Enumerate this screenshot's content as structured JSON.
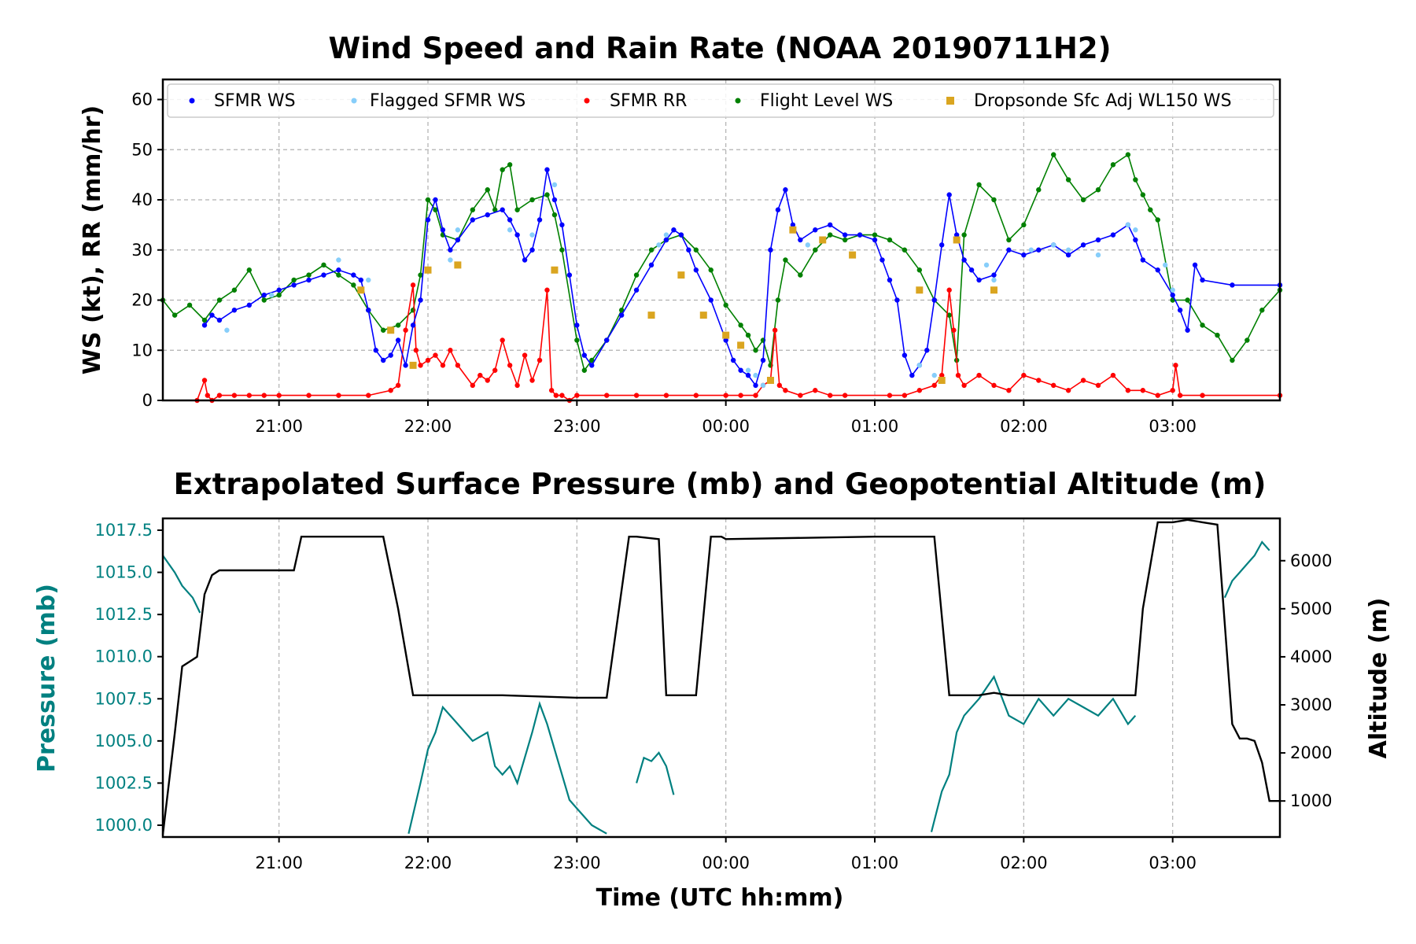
{
  "chart_data": [
    {
      "type": "scatter",
      "title": "Wind Speed and Rain Rate (NOAA 20190711H2)",
      "xlabel": "",
      "ylabel": "WS (kt), RR (mm/hr)",
      "xlim_hours": [
        20.22,
        27.72
      ],
      "ylim": [
        0,
        64
      ],
      "yticks": [
        "0",
        "10",
        "20",
        "30",
        "40",
        "50",
        "60"
      ],
      "xticks": [
        "21:00",
        "22:00",
        "23:00",
        "00:00",
        "01:00",
        "02:00",
        "03:00"
      ],
      "grid": true,
      "legend_position": "top",
      "series": [
        {
          "name": "SFMR WS",
          "color": "#0000ff",
          "marker": "dot",
          "line": true,
          "x_hours": [
            20.5,
            20.55,
            20.6,
            20.7,
            20.8,
            20.9,
            21.0,
            21.1,
            21.2,
            21.3,
            21.4,
            21.5,
            21.55,
            21.6,
            21.65,
            21.7,
            21.75,
            21.8,
            21.85,
            21.9,
            21.95,
            22.0,
            22.05,
            22.1,
            22.15,
            22.2,
            22.3,
            22.4,
            22.5,
            22.55,
            22.6,
            22.65,
            22.7,
            22.75,
            22.8,
            22.85,
            22.9,
            22.95,
            23.0,
            23.05,
            23.1,
            23.2,
            23.3,
            23.4,
            23.5,
            23.6,
            23.65,
            23.7,
            23.75,
            23.8,
            23.9,
            24.0,
            24.05,
            24.1,
            24.15,
            24.2,
            24.25,
            24.3,
            24.35,
            24.4,
            24.45,
            24.5,
            24.6,
            24.7,
            24.8,
            24.9,
            25.0,
            25.05,
            25.1,
            25.15,
            25.2,
            25.25,
            25.3,
            25.35,
            25.4,
            25.45,
            25.5,
            25.55,
            25.6,
            25.65,
            25.7,
            25.8,
            25.9,
            26.0,
            26.1,
            26.2,
            26.3,
            26.4,
            26.5,
            26.6,
            26.7,
            26.75,
            26.8,
            26.9,
            27.0,
            27.05,
            27.1,
            27.15,
            27.2,
            27.4,
            27.72
          ],
          "values": [
            15,
            17,
            16,
            18,
            19,
            21,
            22,
            23,
            24,
            25,
            26,
            25,
            24,
            18,
            10,
            8,
            9,
            12,
            7,
            15,
            20,
            36,
            40,
            34,
            30,
            32,
            36,
            37,
            38,
            36,
            33,
            28,
            30,
            36,
            46,
            40,
            35,
            25,
            15,
            9,
            7,
            12,
            17,
            22,
            27,
            32,
            34,
            33,
            30,
            26,
            20,
            12,
            8,
            6,
            5,
            3,
            8,
            30,
            38,
            42,
            35,
            32,
            34,
            35,
            33,
            33,
            32,
            28,
            24,
            20,
            9,
            5,
            7,
            10,
            20,
            31,
            41,
            33,
            28,
            26,
            24,
            25,
            30,
            29,
            30,
            31,
            29,
            31,
            32,
            33,
            35,
            32,
            28,
            26,
            21,
            18,
            14,
            27,
            24,
            23,
            23
          ]
        },
        {
          "name": "Flagged SFMR WS",
          "color": "#87cefa",
          "marker": "dot",
          "line": false,
          "x_hours": [
            20.65,
            20.95,
            21.4,
            21.6,
            22.15,
            22.2,
            22.55,
            22.7,
            22.85,
            23.55,
            23.6,
            24.15,
            24.2,
            24.25,
            24.55,
            25.3,
            25.4,
            25.75,
            25.8,
            26.05,
            26.2,
            26.3,
            26.5,
            26.7,
            26.75,
            26.95,
            27.0
          ],
          "values": [
            14,
            21,
            28,
            24,
            28,
            34,
            34,
            33,
            43,
            31,
            33,
            6,
            5,
            3,
            31,
            7,
            5,
            27,
            24,
            30,
            31,
            30,
            29,
            35,
            34,
            27,
            22
          ]
        },
        {
          "name": "SFMR RR",
          "color": "#ff0000",
          "marker": "dot",
          "line": true,
          "x_hours": [
            20.45,
            20.5,
            20.52,
            20.55,
            20.6,
            20.7,
            20.8,
            20.9,
            21.0,
            21.2,
            21.4,
            21.6,
            21.75,
            21.8,
            21.85,
            21.9,
            21.92,
            21.95,
            22.0,
            22.05,
            22.1,
            22.15,
            22.2,
            22.3,
            22.35,
            22.4,
            22.45,
            22.5,
            22.55,
            22.6,
            22.65,
            22.7,
            22.75,
            22.8,
            22.83,
            22.86,
            22.9,
            22.95,
            23.0,
            23.2,
            23.4,
            23.6,
            23.8,
            24.0,
            24.1,
            24.2,
            24.25,
            24.3,
            24.33,
            24.36,
            24.4,
            24.5,
            24.6,
            24.7,
            24.8,
            25.1,
            25.2,
            25.3,
            25.4,
            25.45,
            25.5,
            25.53,
            25.56,
            25.6,
            25.7,
            25.8,
            25.9,
            26.0,
            26.1,
            26.2,
            26.3,
            26.4,
            26.5,
            26.6,
            26.7,
            26.8,
            26.9,
            27.0,
            27.02,
            27.05,
            27.2,
            27.72
          ],
          "values": [
            0,
            4,
            1,
            0,
            1,
            1,
            1,
            1,
            1,
            1,
            1,
            1,
            2,
            3,
            14,
            23,
            10,
            7,
            8,
            9,
            7,
            10,
            7,
            3,
            5,
            4,
            6,
            12,
            7,
            3,
            9,
            4,
            8,
            22,
            2,
            1,
            1,
            0,
            1,
            1,
            1,
            1,
            1,
            1,
            1,
            1,
            3,
            4,
            14,
            3,
            2,
            1,
            2,
            1,
            1,
            1,
            1,
            2,
            3,
            5,
            22,
            14,
            5,
            3,
            5,
            3,
            2,
            5,
            4,
            3,
            2,
            4,
            3,
            5,
            2,
            2,
            1,
            2,
            7,
            1,
            1,
            1
          ]
        },
        {
          "name": "Flight Level WS",
          "color": "#008000",
          "marker": "dot",
          "line": true,
          "x_hours": [
            20.22,
            20.3,
            20.4,
            20.5,
            20.6,
            20.7,
            20.8,
            20.9,
            21.0,
            21.1,
            21.2,
            21.3,
            21.4,
            21.5,
            21.6,
            21.7,
            21.8,
            21.9,
            21.95,
            22.0,
            22.05,
            22.1,
            22.2,
            22.3,
            22.4,
            22.45,
            22.5,
            22.55,
            22.6,
            22.7,
            22.8,
            22.85,
            22.9,
            23.0,
            23.05,
            23.1,
            23.2,
            23.3,
            23.4,
            23.5,
            23.6,
            23.7,
            23.8,
            23.9,
            24.0,
            24.1,
            24.15,
            24.2,
            24.25,
            24.3,
            24.35,
            24.4,
            24.5,
            24.6,
            24.7,
            24.8,
            24.9,
            25.0,
            25.1,
            25.2,
            25.3,
            25.4,
            25.5,
            25.55,
            25.6,
            25.7,
            25.8,
            25.9,
            26.0,
            26.1,
            26.2,
            26.3,
            26.4,
            26.5,
            26.6,
            26.7,
            26.75,
            26.8,
            26.85,
            26.9,
            27.0,
            27.1,
            27.2,
            27.3,
            27.4,
            27.5,
            27.6,
            27.72
          ],
          "values": [
            20,
            17,
            19,
            16,
            20,
            22,
            26,
            20,
            21,
            24,
            25,
            27,
            25,
            23,
            18,
            14,
            15,
            18,
            25,
            40,
            38,
            33,
            32,
            38,
            42,
            38,
            46,
            47,
            38,
            40,
            41,
            37,
            30,
            12,
            6,
            8,
            12,
            18,
            25,
            30,
            32,
            33,
            30,
            26,
            19,
            15,
            13,
            10,
            12,
            7,
            20,
            28,
            25,
            30,
            33,
            32,
            33,
            33,
            32,
            30,
            26,
            20,
            17,
            8,
            33,
            43,
            40,
            32,
            35,
            42,
            49,
            44,
            40,
            42,
            47,
            49,
            44,
            41,
            38,
            36,
            20,
            20,
            15,
            13,
            8,
            12,
            18,
            22
          ]
        },
        {
          "name": "Dropsonde Sfc Adj WL150 WS",
          "color": "#daa520",
          "marker": "square",
          "line": false,
          "x_hours": [
            21.55,
            21.75,
            21.9,
            22.0,
            22.2,
            22.85,
            23.5,
            23.7,
            23.85,
            24.0,
            24.1,
            24.3,
            24.45,
            24.65,
            24.85,
            25.3,
            25.45,
            25.55,
            25.8
          ],
          "values": [
            22,
            14,
            7,
            26,
            27,
            26,
            17,
            25,
            17,
            13,
            11,
            4,
            34,
            32,
            29,
            22,
            4,
            32,
            22
          ]
        }
      ]
    },
    {
      "type": "line",
      "title": "Extrapolated Surface Pressure (mb) and Geopotential Altitude (m)",
      "xlabel": "Time (UTC hh:mm)",
      "ylabel_left": "Pressure (mb)",
      "ylabel_right": "Altitude (m)",
      "xlim_hours": [
        20.22,
        27.72
      ],
      "ylim_left": [
        999.3,
        1018.2
      ],
      "ylim_right": [
        250,
        6880
      ],
      "yticks_left": [
        "1000.0",
        "1002.5",
        "1005.0",
        "1007.5",
        "1010.0",
        "1012.5",
        "1015.0",
        "1017.5"
      ],
      "yticks_right": [
        "1000",
        "2000",
        "3000",
        "4000",
        "5000",
        "6000"
      ],
      "xticks": [
        "21:00",
        "22:00",
        "23:00",
        "00:00",
        "01:00",
        "02:00",
        "03:00"
      ],
      "grid": true,
      "pressure_color": "#008080",
      "altitude_color": "#000000",
      "pressure_segments": [
        {
          "x_hours": [
            20.22,
            20.3,
            20.35,
            20.42,
            20.47
          ],
          "values": [
            1016.0,
            1015.0,
            1014.2,
            1013.5,
            1012.6
          ]
        },
        {
          "x_hours": [
            21.87,
            21.95,
            22.0,
            22.05,
            22.1,
            22.2,
            22.3,
            22.4,
            22.45,
            22.5,
            22.55,
            22.6,
            22.7,
            22.75,
            22.8,
            22.9,
            22.95,
            23.0,
            23.1,
            23.2
          ],
          "values": [
            999.5,
            1002.5,
            1004.5,
            1005.5,
            1007.0,
            1006.0,
            1005.0,
            1005.5,
            1003.5,
            1003.0,
            1003.5,
            1002.5,
            1005.5,
            1007.2,
            1006.0,
            1003.0,
            1001.5,
            1001.0,
            1000.0,
            999.5
          ]
        },
        {
          "x_hours": [
            23.4,
            23.45,
            23.5,
            23.55,
            23.6,
            23.65
          ],
          "values": [
            1002.5,
            1004.0,
            1003.8,
            1004.3,
            1003.5,
            1001.8
          ]
        },
        {
          "x_hours": [
            25.38,
            25.45,
            25.5,
            25.55,
            25.6,
            25.7,
            25.8,
            25.9,
            26.0,
            26.1,
            26.2,
            26.3,
            26.4,
            26.5,
            26.6,
            26.7,
            26.75
          ],
          "values": [
            999.6,
            1002.0,
            1003.0,
            1005.5,
            1006.5,
            1007.5,
            1008.8,
            1006.5,
            1006.0,
            1007.5,
            1006.5,
            1007.5,
            1007.0,
            1006.5,
            1007.5,
            1006.0,
            1006.5
          ]
        },
        {
          "x_hours": [
            27.35,
            27.4,
            27.45,
            27.5,
            27.55,
            27.6,
            27.65
          ],
          "values": [
            1013.5,
            1014.5,
            1015.0,
            1015.5,
            1016.0,
            1016.8,
            1016.3
          ]
        }
      ],
      "altitude": {
        "x_hours": [
          20.22,
          20.3,
          20.35,
          20.4,
          20.45,
          20.5,
          20.55,
          20.6,
          21.1,
          21.15,
          21.2,
          21.4,
          21.7,
          21.8,
          21.9,
          22.0,
          22.5,
          23.0,
          23.2,
          23.35,
          23.4,
          23.55,
          23.6,
          23.65,
          23.7,
          23.8,
          23.9,
          23.97,
          24.0,
          25.0,
          25.2,
          25.4,
          25.5,
          25.6,
          25.7,
          25.8,
          25.9,
          26.0,
          26.1,
          26.2,
          26.3,
          26.4,
          26.5,
          26.6,
          26.7,
          26.75,
          26.8,
          26.9,
          27.0,
          27.1,
          27.2,
          27.3,
          27.4,
          27.45,
          27.5,
          27.55,
          27.6,
          27.65,
          27.72
        ],
        "values": [
          300,
          2400,
          3800,
          3900,
          4000,
          5300,
          5700,
          5800,
          5800,
          6500,
          6500,
          6500,
          6500,
          5000,
          3200,
          3200,
          3200,
          3150,
          3150,
          6500,
          6500,
          6450,
          3200,
          3200,
          3200,
          3200,
          6500,
          6500,
          6450,
          6500,
          6500,
          6500,
          3200,
          3200,
          3200,
          3250,
          3200,
          3200,
          3200,
          3200,
          3200,
          3200,
          3200,
          3200,
          3200,
          3200,
          5000,
          6800,
          6800,
          6850,
          6800,
          6750,
          2600,
          2300,
          2300,
          2250,
          1800,
          1000,
          1000
        ]
      }
    }
  ]
}
